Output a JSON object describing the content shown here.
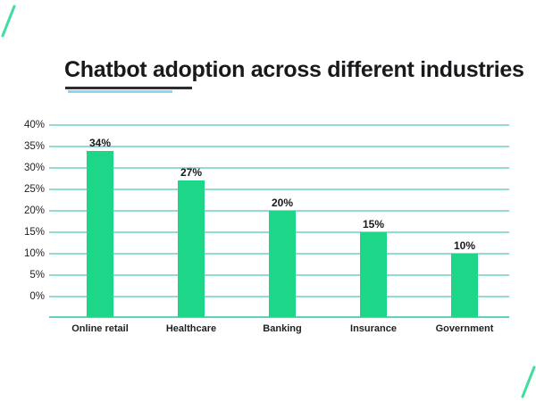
{
  "title": {
    "text": "Chatbot adoption across different industries"
  },
  "chart_data": {
    "type": "bar",
    "title": "Chatbot adoption across different industries",
    "categories": [
      "Online retail",
      "Healthcare",
      "Banking",
      "Insurance",
      "Government"
    ],
    "values": [
      34,
      27,
      20,
      15,
      10
    ],
    "value_labels": [
      "34%",
      "27%",
      "20%",
      "15%",
      "10%"
    ],
    "xlabel": "",
    "ylabel": "",
    "y_ticks": [
      {
        "label": "40%",
        "value": 40
      },
      {
        "label": "35%",
        "value": 35
      },
      {
        "label": "30%",
        "value": 30
      },
      {
        "label": "25%",
        "value": 25
      },
      {
        "label": "20%",
        "value": 20
      },
      {
        "label": "15%",
        "value": 15
      },
      {
        "label": "10%",
        "value": 10
      },
      {
        "label": "5%",
        "value": 5
      },
      {
        "label": "0%",
        "value": 0
      }
    ],
    "ylim": [
      0,
      40
    ],
    "grid": true,
    "legend": false,
    "bar_color": "#1ed687",
    "gridline_color": "#93dbd2",
    "axis_line_color": "#5ed2bf",
    "text_color": "#17191c"
  },
  "decorations": {
    "corner_accent_color": "#3ede9c",
    "title_underline_dark_color": "#2b2e30",
    "title_underline_blue_color": "#87d7f3"
  }
}
